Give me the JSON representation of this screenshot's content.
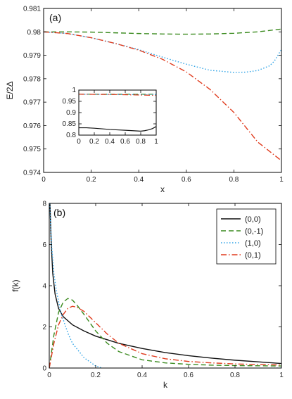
{
  "chart_data": [
    {
      "type": "line",
      "panel_label": "(a)",
      "xlabel": "x",
      "ylabel": "E/2Δ",
      "xlim": [
        0,
        1
      ],
      "ylim": [
        0.974,
        0.981
      ],
      "xticks": [
        "0",
        "0.2",
        "0.4",
        "0.6",
        "0.8",
        "1"
      ],
      "yticks": [
        "0.974",
        "0.975",
        "0.976",
        "0.977",
        "0.978",
        "0.979",
        "0.98",
        "0.981"
      ],
      "series": [
        {
          "style": "dashed",
          "color": "#3a8a1e",
          "x": [
            0,
            0.1,
            0.2,
            0.3,
            0.4,
            0.5,
            0.6,
            0.7,
            0.8,
            0.9,
            1.0
          ],
          "y": [
            0.98,
            0.98,
            0.97999,
            0.97996,
            0.97993,
            0.97991,
            0.9799,
            0.97991,
            0.97994,
            0.98,
            0.98012
          ]
        },
        {
          "style": "dotted",
          "color": "#2fa3e6",
          "x": [
            0,
            0.1,
            0.2,
            0.3,
            0.4,
            0.5,
            0.6,
            0.7,
            0.8,
            0.85,
            0.9,
            0.95,
            0.97,
            1.0
          ],
          "y": [
            0.98,
            0.97993,
            0.97975,
            0.97951,
            0.97924,
            0.97892,
            0.97862,
            0.97836,
            0.97827,
            0.97828,
            0.97835,
            0.97855,
            0.97875,
            0.97925
          ]
        },
        {
          "style": "dashdot",
          "color": "#e03c1f",
          "x": [
            0,
            0.1,
            0.2,
            0.3,
            0.4,
            0.5,
            0.6,
            0.7,
            0.8,
            0.9,
            1.0
          ],
          "y": [
            0.98,
            0.97993,
            0.97975,
            0.97951,
            0.97922,
            0.97883,
            0.97829,
            0.97754,
            0.97656,
            0.9753,
            0.9745
          ]
        }
      ],
      "inset": {
        "xlim": [
          0,
          1
        ],
        "ylim": [
          0.785,
          1.0
        ],
        "xticks": [
          "0",
          "0.2",
          "0.4",
          "0.6",
          "0.8",
          "1"
        ],
        "yticks": [
          "0.8",
          "0.85",
          "0.9",
          "0.95",
          "1"
        ],
        "series": [
          {
            "style": "solid",
            "color": "#111111",
            "x": [
              0,
              0.1,
              0.2,
              0.3,
              0.4,
              0.5,
              0.6,
              0.7,
              0.8,
              0.85,
              0.9,
              0.95,
              1.0
            ],
            "y": [
              0.82,
              0.82,
              0.818,
              0.815,
              0.812,
              0.81,
              0.808,
              0.806,
              0.804,
              0.806,
              0.81,
              0.816,
              0.826
            ]
          },
          {
            "style": "dashed",
            "color": "#3a8a1e",
            "x": [
              0,
              0.5,
              1.0
            ],
            "y": [
              0.98,
              0.9799,
              0.9801
            ]
          },
          {
            "style": "dotted",
            "color": "#2fa3e6",
            "x": [
              0,
              0.5,
              0.85,
              1.0
            ],
            "y": [
              0.98,
              0.9789,
              0.9783,
              0.9792
            ]
          },
          {
            "style": "dashdot",
            "color": "#e03c1f",
            "x": [
              0,
              0.5,
              1.0
            ],
            "y": [
              0.98,
              0.9788,
              0.9745
            ]
          }
        ]
      }
    },
    {
      "type": "line",
      "panel_label": "(b)",
      "xlabel": "k",
      "ylabel": "f(k)",
      "xlim": [
        0,
        1
      ],
      "ylim": [
        0,
        8
      ],
      "xticks": [
        "0",
        "0.2",
        "0.4",
        "0.6",
        "0.8",
        "1"
      ],
      "yticks": [
        "0",
        "2",
        "4",
        "6",
        "8"
      ],
      "legend": "top-right",
      "series": [
        {
          "name": "(0,0)",
          "style": "solid",
          "color": "#111111",
          "x": [
            0.003,
            0.008,
            0.015,
            0.025,
            0.04,
            0.06,
            0.08,
            0.1,
            0.15,
            0.2,
            0.3,
            0.4,
            0.5,
            0.6,
            0.7,
            0.8,
            0.9,
            1.0
          ],
          "y": [
            8.0,
            6.2,
            4.6,
            3.6,
            2.9,
            2.5,
            2.3,
            2.1,
            1.8,
            1.55,
            1.2,
            0.95,
            0.75,
            0.6,
            0.48,
            0.38,
            0.3,
            0.22
          ]
        },
        {
          "name": "(0,-1)",
          "style": "dashed",
          "color": "#3a8a1e",
          "x": [
            0.0,
            0.01,
            0.02,
            0.04,
            0.06,
            0.08,
            0.1,
            0.12,
            0.15,
            0.2,
            0.25,
            0.3,
            0.4,
            0.5,
            0.6,
            0.7,
            0.8,
            1.0
          ],
          "y": [
            0.0,
            0.8,
            1.6,
            2.7,
            3.2,
            3.38,
            3.3,
            3.05,
            2.6,
            1.8,
            1.2,
            0.8,
            0.4,
            0.25,
            0.18,
            0.14,
            0.12,
            0.1
          ]
        },
        {
          "name": "(1,0)",
          "style": "dotted",
          "color": "#2fa3e6",
          "x": [
            0.002,
            0.005,
            0.01,
            0.02,
            0.03,
            0.05,
            0.08,
            0.1,
            0.15,
            0.2,
            0.25,
            0.3,
            0.35,
            0.4,
            0.5,
            0.6,
            0.7,
            0.8,
            0.9,
            1.0
          ],
          "y": [
            8.0,
            7.2,
            6.0,
            4.6,
            3.8,
            2.7,
            1.7,
            1.2,
            0.5,
            0.1,
            -0.08,
            -0.12,
            -0.12,
            -0.1,
            -0.07,
            -0.05,
            -0.03,
            -0.02,
            -0.01,
            0.0
          ]
        },
        {
          "name": "(0,1)",
          "style": "dashdot",
          "color": "#e03c1f",
          "x": [
            0.0,
            0.01,
            0.02,
            0.04,
            0.06,
            0.08,
            0.1,
            0.12,
            0.15,
            0.2,
            0.25,
            0.3,
            0.4,
            0.5,
            0.6,
            0.7,
            0.8,
            0.9,
            1.0
          ],
          "y": [
            0.0,
            0.6,
            1.2,
            2.1,
            2.6,
            2.9,
            3.0,
            2.95,
            2.75,
            2.2,
            1.65,
            1.2,
            0.7,
            0.45,
            0.32,
            0.25,
            0.2,
            0.17,
            0.15
          ]
        }
      ]
    }
  ]
}
